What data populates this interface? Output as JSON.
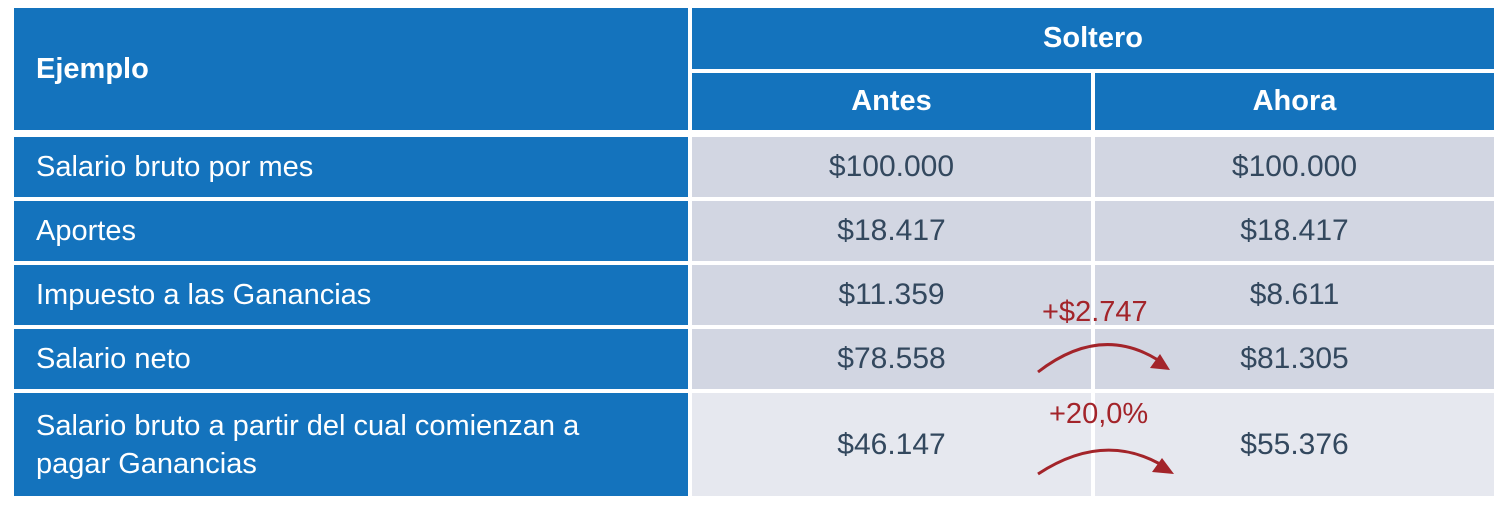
{
  "header": {
    "example_label": "Ejemplo",
    "group_label": "Soltero",
    "col_before": "Antes",
    "col_after": "Ahora"
  },
  "rows": [
    {
      "label": "Salario bruto por mes",
      "before": "$100.000",
      "after": "$100.000"
    },
    {
      "label": "Aportes",
      "before": "$18.417",
      "after": "$18.417"
    },
    {
      "label": "Impuesto a las Ganancias",
      "before": "$11.359",
      "after": "$8.611"
    },
    {
      "label": "Salario neto",
      "before": "$78.558",
      "after": "$81.305"
    },
    {
      "label": "Salario bruto a partir del cual comienzan a pagar Ganancias",
      "before": "$46.147",
      "after": "$55.376"
    }
  ],
  "annotations": {
    "net_salary_change": "+$2.747",
    "threshold_change": "+20,0%"
  },
  "colors": {
    "header_blue": "#1473bd",
    "row_gray": "#d2d6e2",
    "row_light": "#e6e8ef",
    "annotation_red": "#a3242a"
  }
}
